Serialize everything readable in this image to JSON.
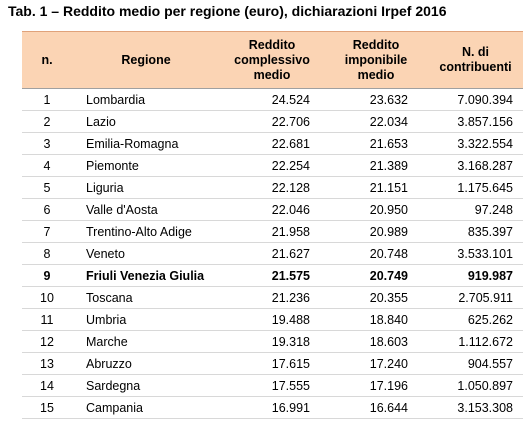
{
  "title": "Tab. 1 – Reddito medio per regione (euro), dichiarazioni Irpef 2016",
  "table": {
    "header": [
      "n.",
      "Regione",
      "Reddito complessivo medio",
      "Reddito imponibile medio",
      "N. di contribuenti"
    ],
    "rows": [
      [
        "1",
        "Lombardia",
        "24.524",
        "23.632",
        "7.090.394"
      ],
      [
        "2",
        "Lazio",
        "22.706",
        "22.034",
        "3.857.156"
      ],
      [
        "3",
        "Emilia-Romagna",
        "22.681",
        "21.653",
        "3.322.554"
      ],
      [
        "4",
        "Piemonte",
        "22.254",
        "21.389",
        "3.168.287"
      ],
      [
        "5",
        "Liguria",
        "22.128",
        "21.151",
        "1.175.645"
      ],
      [
        "6",
        "Valle d'Aosta",
        "22.046",
        "20.950",
        "97.248"
      ],
      [
        "7",
        "Trentino-Alto Adige",
        "21.958",
        "20.989",
        "835.397"
      ],
      [
        "8",
        "Veneto",
        "21.627",
        "20.748",
        "3.533.101"
      ],
      [
        "9",
        "Friuli Venezia Giulia",
        "21.575",
        "20.749",
        "919.987"
      ],
      [
        "10",
        "Toscana",
        "21.236",
        "20.355",
        "2.705.911"
      ],
      [
        "11",
        "Umbria",
        "19.488",
        "18.840",
        "625.262"
      ],
      [
        "12",
        "Marche",
        "19.318",
        "18.603",
        "1.112.672"
      ],
      [
        "13",
        "Abruzzo",
        "17.615",
        "17.240",
        "904.557"
      ],
      [
        "14",
        "Sardegna",
        "17.555",
        "17.196",
        "1.050.897"
      ],
      [
        "15",
        "Campania",
        "16.991",
        "16.644",
        "3.153.308"
      ]
    ]
  }
}
